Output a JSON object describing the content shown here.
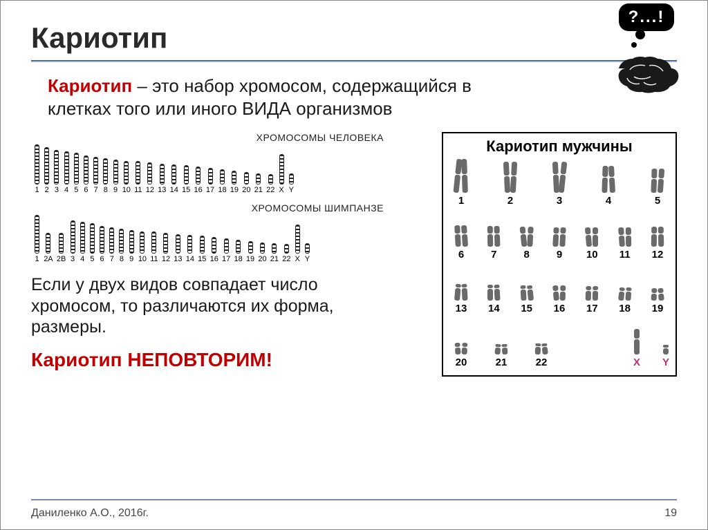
{
  "title": "Кариотип",
  "definition": {
    "term": "Кариотип",
    "text_after_term": " – это набор хромосом, содержащийся в клетках того или иного ",
    "upper_word": "ВИДА",
    "text_tail": " организмов"
  },
  "ideogram": {
    "human": {
      "caption": "ХРОМОСОМЫ ЧЕЛОВЕКА",
      "labels": [
        "1",
        "2",
        "3",
        "4",
        "5",
        "6",
        "7",
        "8",
        "9",
        "10",
        "11",
        "12",
        "13",
        "14",
        "15",
        "16",
        "17",
        "18",
        "19",
        "20",
        "21",
        "22",
        "X",
        "Y"
      ],
      "heights": [
        58,
        54,
        50,
        48,
        46,
        42,
        40,
        38,
        36,
        34,
        34,
        32,
        30,
        29,
        28,
        26,
        24,
        22,
        20,
        18,
        16,
        15,
        44,
        16
      ],
      "bar_color": "#222222"
    },
    "chimp": {
      "caption": "ХРОМОСОМЫ ШИМПАНЗЕ",
      "labels": [
        "1",
        "2A",
        "2B",
        "3",
        "4",
        "5",
        "6",
        "7",
        "8",
        "9",
        "10",
        "11",
        "12",
        "13",
        "14",
        "15",
        "16",
        "17",
        "18",
        "19",
        "20",
        "21",
        "22",
        "X",
        "Y"
      ],
      "heights": [
        56,
        30,
        30,
        48,
        46,
        44,
        40,
        38,
        36,
        34,
        32,
        32,
        30,
        28,
        27,
        26,
        24,
        22,
        20,
        18,
        16,
        15,
        14,
        42,
        15
      ],
      "bar_color": "#222222"
    }
  },
  "mid_text": "Если у двух видов совпадает число хромосом, то различаются их форма, размеры.",
  "conclusion": "Кариотип НЕПОВТОРИМ!",
  "male_karyotype": {
    "title": "Кариотип мужчины",
    "chrom_color": "#6a6a6a",
    "sex_label_color": "#b83070",
    "rows": [
      {
        "labels": [
          "1",
          "2",
          "3",
          "4",
          "5"
        ],
        "p": [
          22,
          20,
          18,
          16,
          14
        ],
        "q": [
          26,
          24,
          26,
          22,
          20
        ]
      },
      {
        "labels": [
          "6",
          "7",
          "8",
          "9",
          "10",
          "11",
          "12"
        ],
        "p": [
          12,
          11,
          10,
          9,
          10,
          11,
          10
        ],
        "q": [
          18,
          18,
          18,
          18,
          17,
          16,
          18
        ]
      },
      {
        "labels": [
          "13",
          "14",
          "15",
          "16",
          "17",
          "18",
          "19"
        ],
        "p": [
          5,
          5,
          5,
          8,
          6,
          5,
          7
        ],
        "q": [
          18,
          17,
          16,
          13,
          14,
          13,
          10
        ]
      },
      {
        "labels": [
          "20",
          "21",
          "22"
        ],
        "p": [
          6,
          4,
          4
        ],
        "q": [
          10,
          10,
          11
        ]
      }
    ],
    "sex": {
      "labels": [
        "X",
        "Y"
      ],
      "heights_p": [
        14,
        4
      ],
      "heights_q": [
        22,
        9
      ]
    }
  },
  "bubble_text": "?...!",
  "footer": {
    "author": "Даниленко А.О., 2016г.",
    "page": "19"
  },
  "colors": {
    "accent_red": "#c00000",
    "rule_blue": "#2e5d9f",
    "rule_gray": "#c0c0c0",
    "text": "#1a1a1a",
    "bg": "#ffffff"
  }
}
